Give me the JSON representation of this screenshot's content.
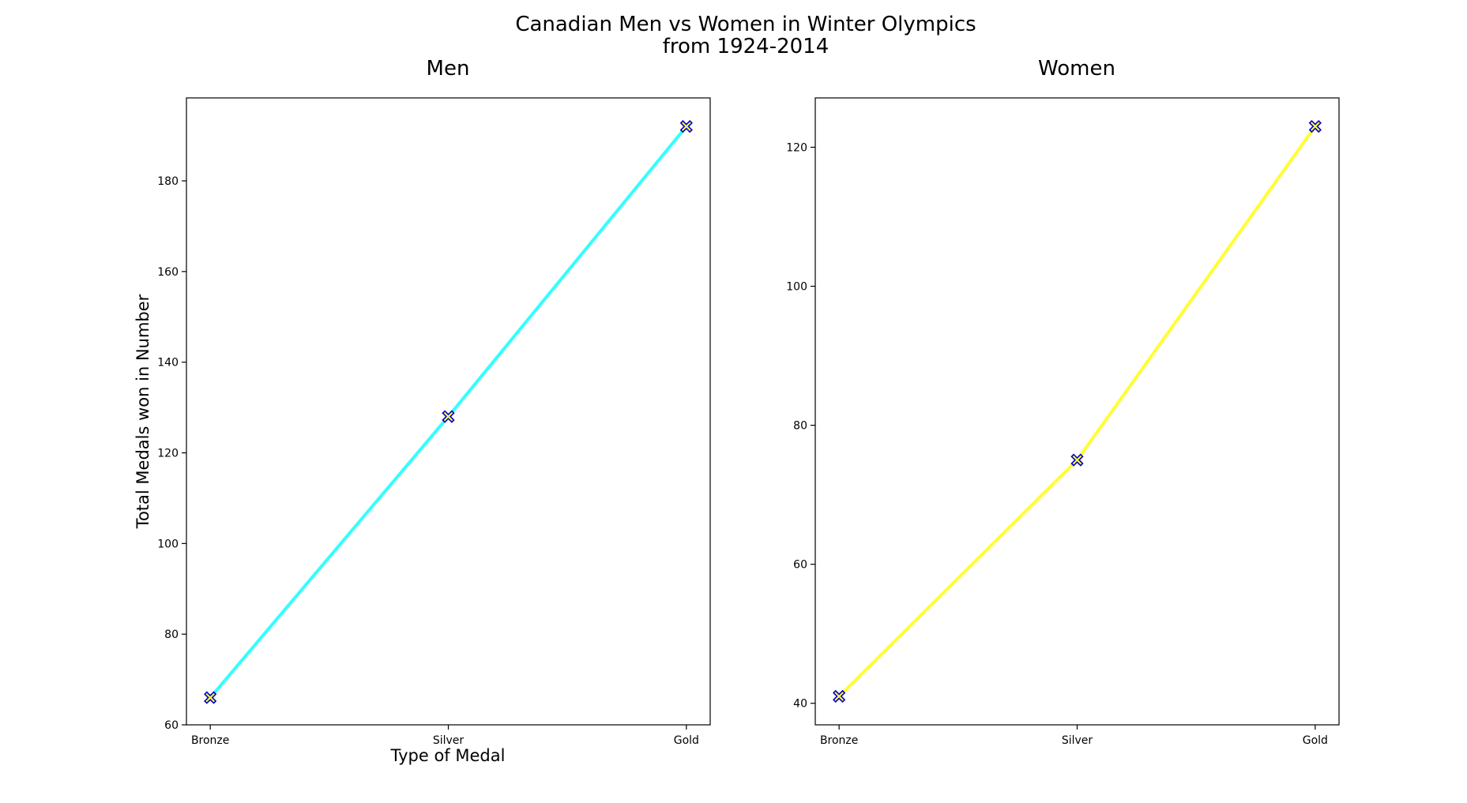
{
  "figure": {
    "title_line1": "Canadian Men vs Women in Winter Olympics",
    "title_line2": "from 1924-2014"
  },
  "chart_data": [
    {
      "type": "line",
      "title": "Men",
      "xlabel": "Type of Medal",
      "ylabel": "Total Medals won in Number",
      "categories": [
        "Bronze",
        "Silver",
        "Gold"
      ],
      "values": [
        66,
        128,
        192
      ],
      "ylim": [
        60,
        198.3
      ],
      "yticks": [
        60,
        80,
        100,
        120,
        140,
        160,
        180
      ],
      "line_color": "#33ffff",
      "marker": "X",
      "marker_fill": "#ffff33",
      "marker_edge": "#0000cc",
      "grid": false
    },
    {
      "type": "line",
      "title": "Women",
      "xlabel": "",
      "ylabel": "",
      "categories": [
        "Bronze",
        "Silver",
        "Gold"
      ],
      "values": [
        41,
        75,
        123
      ],
      "ylim": [
        36.9,
        127.1
      ],
      "yticks": [
        40,
        60,
        80,
        100,
        120
      ],
      "line_color": "#ffff33",
      "marker": "X",
      "marker_fill": "#ffff33",
      "marker_edge": "#0000cc",
      "grid": false
    }
  ]
}
